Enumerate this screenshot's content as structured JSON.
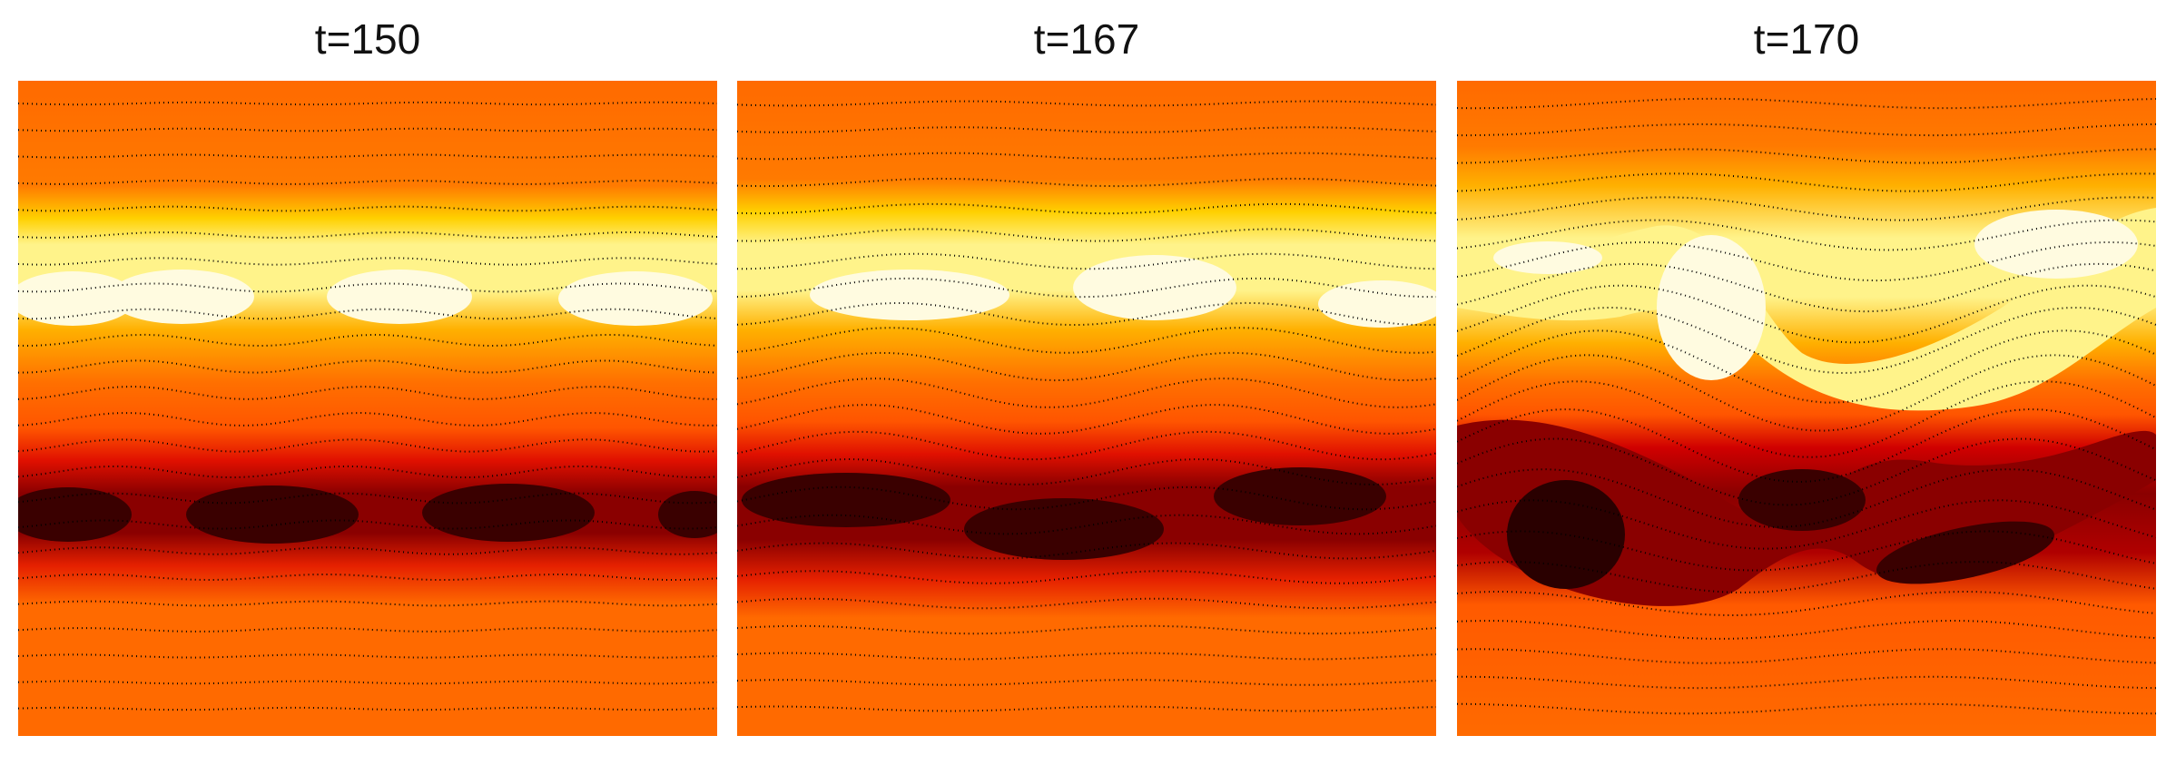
{
  "panels": [
    {
      "title": "t=150"
    },
    {
      "title": "t=167"
    },
    {
      "title": "t=170"
    }
  ],
  "colors": {
    "background": "#ff6a00",
    "hot_band": "#fff38a",
    "hot_core": "#fffbe0",
    "cold_band": "#c10000",
    "cold_core": "#2a0000",
    "contour": "#000000"
  }
}
